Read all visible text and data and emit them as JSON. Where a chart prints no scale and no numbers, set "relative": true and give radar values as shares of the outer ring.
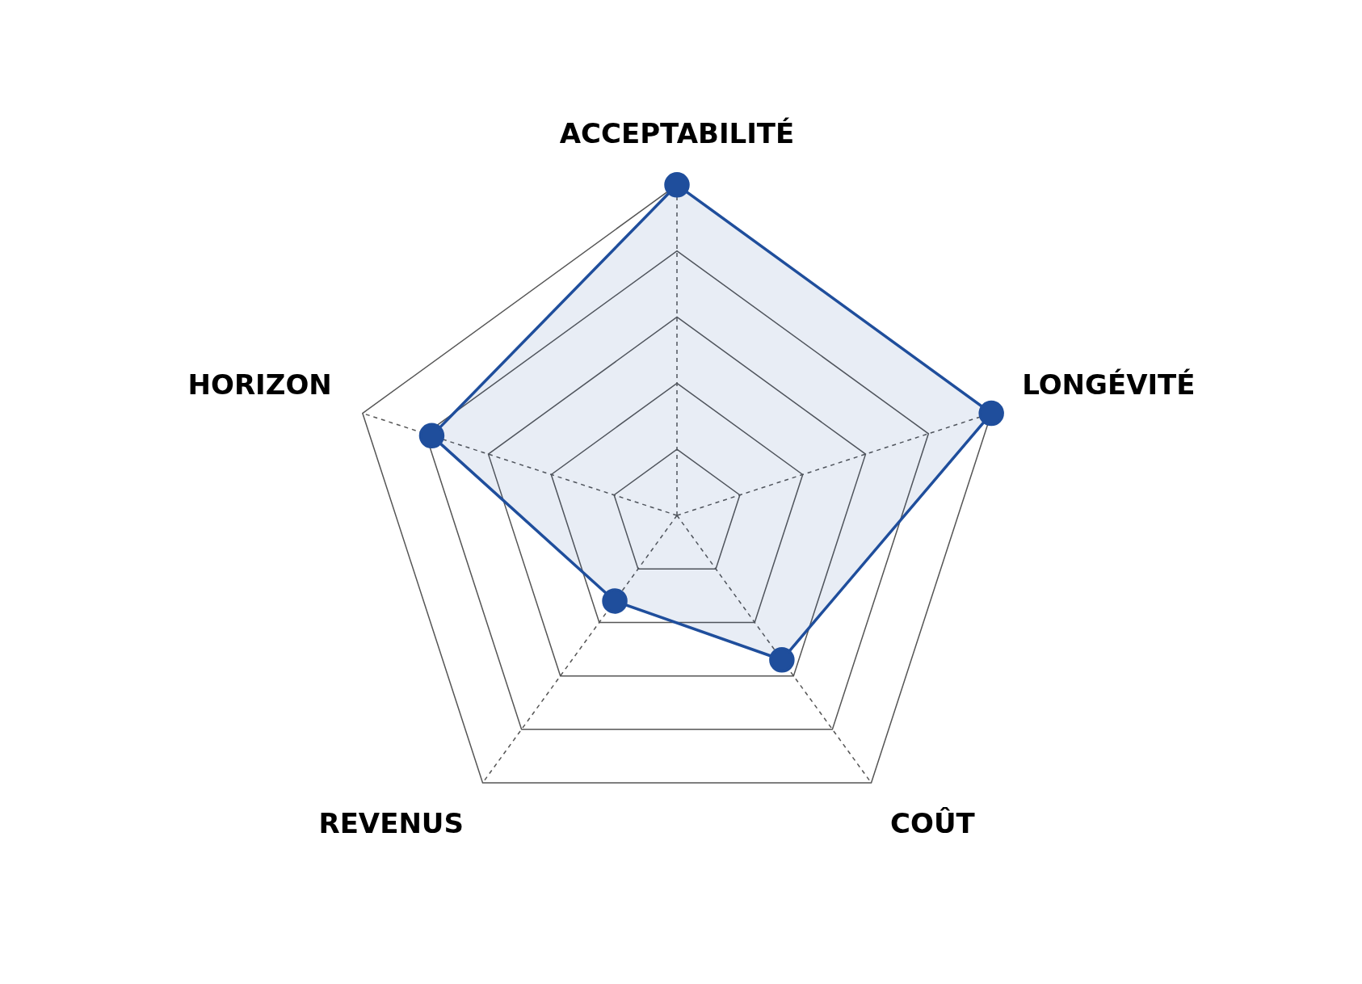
{
  "chart_data": {
    "type": "radar",
    "relative": true,
    "categories": [
      "ACCEPTABILITÉ",
      "LONGÉVITÉ",
      "COÛT",
      "REVENUS",
      "HORIZON"
    ],
    "series": [
      {
        "color": "#1f4e9c",
        "values": [
          1,
          1,
          0.54,
          0.32,
          0.78
        ]
      }
    ],
    "grid": true,
    "legend": false,
    "marker": "circle",
    "line_style": "solid"
  }
}
